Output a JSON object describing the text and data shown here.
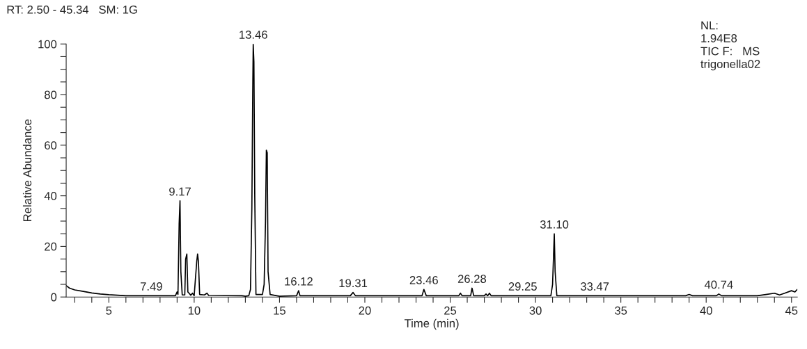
{
  "chart_data": {
    "type": "line",
    "xlabel": "Time (min)",
    "ylabel": "Relative Abundance",
    "x": [
      2.5,
      2.7,
      3.0,
      3.5,
      4.0,
      4.5,
      5.0,
      6.0,
      7.5,
      8.9,
      9.0,
      9.05,
      9.12,
      9.17,
      9.22,
      9.3,
      9.45,
      9.5,
      9.57,
      9.63,
      9.7,
      9.8,
      9.9,
      10.0,
      10.15,
      10.2,
      10.25,
      10.32,
      10.6,
      10.75,
      10.85,
      12.8,
      13.0,
      13.2,
      13.3,
      13.38,
      13.43,
      13.46,
      13.5,
      13.55,
      13.62,
      14.0,
      14.1,
      14.18,
      14.23,
      14.28,
      14.33,
      14.45,
      15.0,
      16.0,
      16.12,
      16.2,
      19.15,
      19.31,
      19.45,
      23.35,
      23.46,
      23.6,
      25.5,
      25.6,
      25.7,
      26.2,
      26.28,
      26.38,
      27.0,
      27.1,
      27.2,
      27.3,
      27.4,
      30.9,
      31.0,
      31.05,
      31.1,
      31.15,
      31.25,
      38.8,
      39.0,
      39.2,
      40.6,
      40.74,
      40.9,
      43.0,
      43.5,
      44.0,
      44.3,
      44.6,
      45.0,
      45.2,
      45.34
    ],
    "series": [
      {
        "color": "#000000",
        "values": [
          4.5,
          3.5,
          2.8,
          2.2,
          1.6,
          1.2,
          0.9,
          0.5,
          0.5,
          0.5,
          2.0,
          1.0,
          29,
          38,
          10,
          0.8,
          0.8,
          15,
          17,
          2,
          1.5,
          0.7,
          1.5,
          0.5,
          14,
          17,
          14,
          1,
          0.8,
          1.5,
          0.6,
          0.5,
          0.3,
          0.5,
          3,
          35,
          80,
          100,
          93,
          40,
          1,
          1,
          5,
          30,
          58,
          57,
          10,
          1,
          0.3,
          0.5,
          2.5,
          0.5,
          0.5,
          1.8,
          0.5,
          0.5,
          3,
          0.5,
          0.5,
          1.5,
          0.5,
          0.5,
          3.5,
          0.5,
          0.5,
          1.2,
          0.5,
          1.5,
          0.5,
          0.5,
          5,
          15,
          25,
          10,
          0.5,
          0.5,
          1.0,
          0.5,
          0.5,
          1.2,
          0.5,
          0.5,
          1.0,
          1.5,
          0.8,
          1.5,
          2.5,
          2.0,
          3.0
        ]
      }
    ],
    "xlim": [
      2.5,
      45.34
    ],
    "ylim": [
      0,
      100
    ],
    "xticks": [
      {
        "value": 3,
        "label": null
      },
      {
        "value": 4,
        "label": null
      },
      5,
      {
        "value": 6,
        "label": null
      },
      {
        "value": 7,
        "label": null
      },
      {
        "value": 8,
        "label": null
      },
      {
        "value": 9,
        "label": null
      },
      10,
      {
        "value": 11,
        "label": null
      },
      {
        "value": 12,
        "label": null
      },
      {
        "value": 13,
        "label": null
      },
      {
        "value": 14,
        "label": null
      },
      15,
      {
        "value": 16,
        "label": null
      },
      {
        "value": 17,
        "label": null
      },
      {
        "value": 18,
        "label": null
      },
      {
        "value": 19,
        "label": null
      },
      20,
      {
        "value": 21,
        "label": null
      },
      {
        "value": 22,
        "label": null
      },
      {
        "value": 23,
        "label": null
      },
      {
        "value": 24,
        "label": null
      },
      25,
      {
        "value": 26,
        "label": null
      },
      {
        "value": 27,
        "label": null
      },
      {
        "value": 28,
        "label": null
      },
      {
        "value": 29,
        "label": null
      },
      30,
      {
        "value": 31,
        "label": null
      },
      {
        "value": 32,
        "label": null
      },
      {
        "value": 33,
        "label": null
      },
      {
        "value": 34,
        "label": null
      },
      35,
      {
        "value": 36,
        "label": null
      },
      {
        "value": 37,
        "label": null
      },
      {
        "value": 38,
        "label": null
      },
      {
        "value": 39,
        "label": null
      },
      40,
      {
        "value": 41,
        "label": null
      },
      {
        "value": 42,
        "label": null
      },
      {
        "value": 43,
        "label": null
      },
      {
        "value": 44,
        "label": null
      },
      45
    ],
    "yticks": [
      0,
      {
        "value": 5,
        "label": null
      },
      {
        "value": 10,
        "label": null
      },
      {
        "value": 15,
        "label": null
      },
      20,
      {
        "value": 25,
        "label": null
      },
      {
        "value": 30,
        "label": null
      },
      {
        "value": 35,
        "label": null
      },
      40,
      {
        "value": 45,
        "label": null
      },
      {
        "value": 50,
        "label": null
      },
      {
        "value": 55,
        "label": null
      },
      60,
      {
        "value": 65,
        "label": null
      },
      {
        "value": 70,
        "label": null
      },
      {
        "value": 75,
        "label": null
      },
      80,
      {
        "value": 85,
        "label": null
      },
      {
        "value": 90,
        "label": null
      },
      {
        "value": 95,
        "label": null
      },
      100
    ],
    "grid": false,
    "legend": false,
    "marker": "none",
    "line_style": "solid",
    "annotations": [
      "RT: 2.50 - 45.34   SM: 1G",
      "NL:\n1.94E8\nTIC F:   MS\ntrigonella02",
      {
        "text": "7.49",
        "x": 7.49,
        "y": 0.5
      },
      {
        "text": "9.17",
        "x": 9.17,
        "y": 38
      },
      {
        "text": "13.46",
        "x": 13.46,
        "y": 100
      },
      {
        "text": "16.12",
        "x": 16.12,
        "y": 2.5
      },
      {
        "text": "19.31",
        "x": 19.31,
        "y": 1.8
      },
      {
        "text": "23.46",
        "x": 23.46,
        "y": 3
      },
      {
        "text": "26.28",
        "x": 26.28,
        "y": 3.5
      },
      {
        "text": "29.25",
        "x": 29.25,
        "y": 0.5
      },
      {
        "text": "31.10",
        "x": 31.1,
        "y": 25
      },
      {
        "text": "33.47",
        "x": 33.47,
        "y": 0.5
      },
      {
        "text": "40.74",
        "x": 40.74,
        "y": 1.2
      }
    ]
  }
}
